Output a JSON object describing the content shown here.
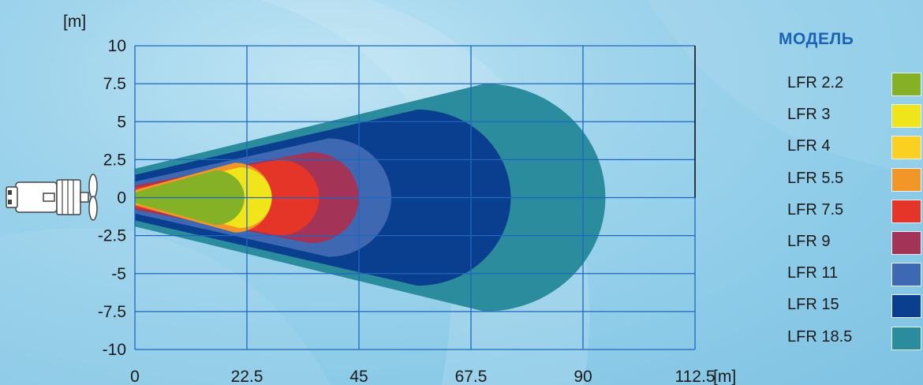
{
  "chart_data": {
    "type": "area",
    "y_unit": "[m]",
    "x_unit": "[m]",
    "x_ticks": [
      "0",
      "22.5",
      "45",
      "67.5",
      "90",
      "112.5"
    ],
    "y_ticks": [
      "10",
      "7.5",
      "5",
      "2.5",
      "0",
      "-2.5",
      "-5",
      "-7.5",
      "-10"
    ],
    "xlim": [
      0,
      112.5
    ],
    "ylim": [
      -10,
      10
    ],
    "grid": true,
    "legend_position": "right",
    "series": [
      {
        "name": "LFR 18.5",
        "color": "#2a8c9c",
        "start_halfwidth": 1.9,
        "reach": 94.5,
        "max_halfwidth": 7.5
      },
      {
        "name": "LFR 15",
        "color": "#0a3f8f",
        "start_halfwidth": 1.5,
        "reach": 75.5,
        "max_halfwidth": 5.8
      },
      {
        "name": "LFR 11",
        "color": "#3e68b2",
        "start_halfwidth": 1.05,
        "reach": 51.5,
        "max_halfwidth": 3.9
      },
      {
        "name": "LFR 9",
        "color": "#a33458",
        "start_halfwidth": 0.8,
        "reach": 45.0,
        "max_halfwidth": 3.0
      },
      {
        "name": "LFR 7.5",
        "color": "#e53528",
        "start_halfwidth": 0.65,
        "reach": 37.0,
        "max_halfwidth": 2.5
      },
      {
        "name": "LFR 5.5",
        "color": "#f29627",
        "start_halfwidth": 0.5,
        "reach": 27.5,
        "max_halfwidth": 2.3
      },
      {
        "name": "LFR 4",
        "color": "#fcd020",
        "start_halfwidth": 0.4,
        "reach": 27.5,
        "max_halfwidth": 1.7
      },
      {
        "name": "LFR 3",
        "color": "#f0e41a",
        "start_halfwidth": 0.3,
        "reach": 27.5,
        "max_halfwidth": 2.0
      },
      {
        "name": "LFR 2.2",
        "color": "#84b125",
        "start_halfwidth": 0.35,
        "reach": 22.0,
        "max_halfwidth": 1.8
      }
    ]
  },
  "legend": {
    "title": "МОДЕЛЬ",
    "items": [
      {
        "label": "LFR 2.2",
        "color": "#84b125"
      },
      {
        "label": "LFR 3",
        "color": "#f0e41a"
      },
      {
        "label": "LFR 4",
        "color": "#fcd020"
      },
      {
        "label": "LFR 5.5",
        "color": "#f29627"
      },
      {
        "label": "LFR 7.5",
        "color": "#e53528"
      },
      {
        "label": "LFR 9",
        "color": "#a33458"
      },
      {
        "label": "LFR 11",
        "color": "#3e68b2"
      },
      {
        "label": "LFR 15",
        "color": "#0a3f8f"
      },
      {
        "label": "LFR 18.5",
        "color": "#2a8c9c"
      }
    ]
  }
}
